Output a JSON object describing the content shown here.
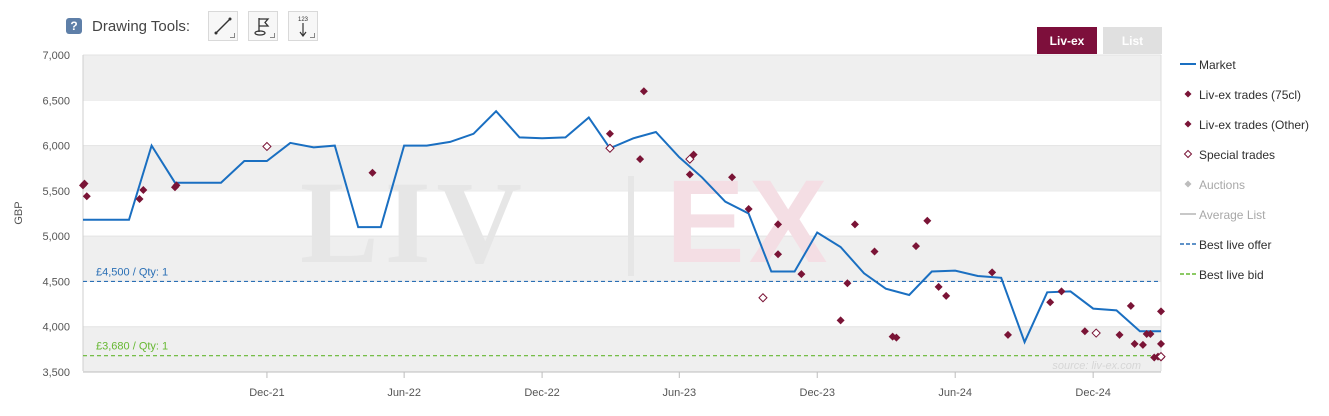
{
  "toolbar": {
    "help_symbol": "?",
    "label": "Drawing Tools:",
    "tools": [
      {
        "icon": "line-icon"
      },
      {
        "icon": "flag-icon"
      },
      {
        "icon": "measure-icon",
        "text": "123"
      }
    ]
  },
  "tabs": [
    {
      "label": "Liv-ex",
      "active": true
    },
    {
      "label": "List",
      "active": false
    }
  ],
  "colors": {
    "market": "#1a6fc1",
    "trade": "#7a1436",
    "special": "#7a1436",
    "auction": "#bdbdbd",
    "average": "#c8c8c8",
    "offer": "#2a6fb5",
    "bid": "#66b832",
    "band": "#efefef"
  },
  "legend": [
    {
      "label": "Market",
      "symbol": "line",
      "color": "#1a6fc1"
    },
    {
      "label": "Liv-ex trades (75cl)",
      "symbol": "diamond",
      "color": "#7a1436"
    },
    {
      "label": "Liv-ex trades (Other)",
      "symbol": "diamond",
      "color": "#7a1436"
    },
    {
      "label": "Special trades",
      "symbol": "diamond-open",
      "color": "#7a1436"
    },
    {
      "label": "Auctions",
      "symbol": "diamond",
      "color": "#bdbdbd",
      "muted": true
    },
    {
      "label": "Average List",
      "symbol": "line",
      "color": "#c8c8c8",
      "muted": true
    },
    {
      "label": "Best live offer",
      "symbol": "dash",
      "color": "#2a6fb5"
    },
    {
      "label": "Best live bid",
      "symbol": "dash",
      "color": "#66b832"
    }
  ],
  "chart_data": {
    "type": "line",
    "ylabel": "GBP",
    "ylim": [
      3500,
      7000
    ],
    "yticks": [
      "3,500",
      "4,000",
      "4,500",
      "5,000",
      "5,500",
      "6,000",
      "6,500",
      "7,000"
    ],
    "xlim": [
      "2021-04-01",
      "2025-03-01"
    ],
    "xticks": [
      {
        "label": "Dec-21",
        "date": "2021-12-01"
      },
      {
        "label": "Jun-22",
        "date": "2022-06-01"
      },
      {
        "label": "Dec-22",
        "date": "2022-12-01"
      },
      {
        "label": "Jun-23",
        "date": "2023-06-01"
      },
      {
        "label": "Dec-23",
        "date": "2023-12-01"
      },
      {
        "label": "Jun-24",
        "date": "2024-06-01"
      },
      {
        "label": "Dec-24",
        "date": "2024-12-01"
      }
    ],
    "watermark": "LIV|EX",
    "source": "source: liv-ex.com",
    "best_offer": {
      "value": 4500,
      "label": "£4,500 / Qty: 1"
    },
    "best_bid": {
      "value": 3680,
      "label": "£3,680 / Qty: 1"
    },
    "series": [
      {
        "name": "Market",
        "style": "line",
        "points": [
          [
            "2021-04-01",
            5180
          ],
          [
            "2021-05-01",
            5180
          ],
          [
            "2021-06-01",
            5180
          ],
          [
            "2021-07-01",
            6000
          ],
          [
            "2021-08-01",
            5590
          ],
          [
            "2021-09-01",
            5590
          ],
          [
            "2021-10-01",
            5590
          ],
          [
            "2021-11-01",
            5830
          ],
          [
            "2021-12-01",
            5830
          ],
          [
            "2022-01-01",
            6030
          ],
          [
            "2022-02-01",
            5980
          ],
          [
            "2022-03-01",
            6000
          ],
          [
            "2022-04-01",
            5100
          ],
          [
            "2022-05-01",
            5100
          ],
          [
            "2022-06-01",
            6000
          ],
          [
            "2022-07-01",
            6000
          ],
          [
            "2022-08-01",
            6040
          ],
          [
            "2022-09-01",
            6130
          ],
          [
            "2022-10-01",
            6380
          ],
          [
            "2022-11-01",
            6090
          ],
          [
            "2022-12-01",
            6080
          ],
          [
            "2023-01-01",
            6090
          ],
          [
            "2023-02-01",
            6310
          ],
          [
            "2023-03-01",
            5970
          ],
          [
            "2023-04-01",
            6080
          ],
          [
            "2023-05-01",
            6150
          ],
          [
            "2023-06-01",
            5870
          ],
          [
            "2023-07-01",
            5650
          ],
          [
            "2023-08-01",
            5380
          ],
          [
            "2023-09-01",
            5250
          ],
          [
            "2023-10-01",
            4610
          ],
          [
            "2023-11-01",
            4610
          ],
          [
            "2023-12-01",
            5040
          ],
          [
            "2024-01-01",
            4880
          ],
          [
            "2024-02-01",
            4590
          ],
          [
            "2024-03-01",
            4420
          ],
          [
            "2024-04-01",
            4350
          ],
          [
            "2024-05-01",
            4610
          ],
          [
            "2024-06-01",
            4620
          ],
          [
            "2024-07-01",
            4560
          ],
          [
            "2024-08-01",
            4540
          ],
          [
            "2024-09-01",
            3830
          ],
          [
            "2024-10-01",
            4380
          ],
          [
            "2024-11-01",
            4390
          ],
          [
            "2024-12-01",
            4200
          ],
          [
            "2025-01-01",
            4180
          ],
          [
            "2025-02-01",
            3950
          ],
          [
            "2025-03-01",
            3950
          ]
        ]
      },
      {
        "name": "Liv-ex trades (75cl)",
        "style": "diamond",
        "points": [
          [
            "2021-04-01",
            5560
          ],
          [
            "2021-04-03",
            5580
          ],
          [
            "2021-04-06",
            5440
          ],
          [
            "2021-06-15",
            5410
          ],
          [
            "2021-06-20",
            5510
          ],
          [
            "2021-08-01",
            5540
          ],
          [
            "2021-08-03",
            5560
          ],
          [
            "2022-04-20",
            5700
          ],
          [
            "2023-03-01",
            6130
          ],
          [
            "2023-04-15",
            6600
          ],
          [
            "2023-04-10",
            5850
          ],
          [
            "2023-06-20",
            5900
          ],
          [
            "2023-06-15",
            5680
          ],
          [
            "2023-08-10",
            5650
          ],
          [
            "2023-09-01",
            5300
          ],
          [
            "2023-10-10",
            5130
          ],
          [
            "2023-10-10",
            4800
          ],
          [
            "2023-11-10",
            4580
          ],
          [
            "2024-01-10",
            4480
          ],
          [
            "2024-01-01",
            4070
          ],
          [
            "2024-01-20",
            5130
          ],
          [
            "2024-02-15",
            4830
          ],
          [
            "2024-03-15",
            3880
          ],
          [
            "2024-03-10",
            3890
          ],
          [
            "2024-04-10",
            4890
          ],
          [
            "2024-04-25",
            5170
          ],
          [
            "2024-05-10",
            4440
          ],
          [
            "2024-05-20",
            4340
          ],
          [
            "2024-07-20",
            4600
          ],
          [
            "2024-08-10",
            3910
          ],
          [
            "2024-10-05",
            4270
          ],
          [
            "2024-10-20",
            4390
          ],
          [
            "2024-11-20",
            3950
          ],
          [
            "2025-01-05",
            3910
          ],
          [
            "2025-01-20",
            4230
          ],
          [
            "2025-01-25",
            3810
          ],
          [
            "2025-02-05",
            3800
          ],
          [
            "2025-02-10",
            3920
          ],
          [
            "2025-02-15",
            3920
          ],
          [
            "2025-02-25",
            3670
          ],
          [
            "2025-02-20",
            3660
          ],
          [
            "2025-03-01",
            3810
          ],
          [
            "2025-03-01",
            3660
          ],
          [
            "2025-03-01",
            4170
          ]
        ]
      },
      {
        "name": "Special trades",
        "style": "diamond-open",
        "points": [
          [
            "2021-12-01",
            5990
          ],
          [
            "2023-03-01",
            5970
          ],
          [
            "2023-06-15",
            5850
          ],
          [
            "2023-09-20",
            4320
          ],
          [
            "2024-12-05",
            3930
          ],
          [
            "2025-03-01",
            3670
          ]
        ]
      }
    ]
  }
}
